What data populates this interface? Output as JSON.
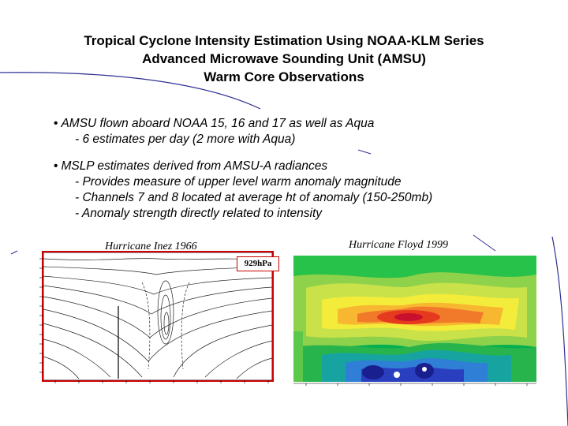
{
  "slide": {
    "title_lines": [
      "Tropical Cyclone Intensity Estimation Using NOAA-KLM Series",
      "Advanced Microwave Sounding Unit (AMSU)",
      "Warm Core Observations"
    ],
    "bullets": [
      {
        "marker": "•",
        "text": "AMSU flown aboard NOAA 15, 16 and 17 as well as Aqua",
        "subs": [
          "- 6 estimates per day (2 more with Aqua)"
        ]
      },
      {
        "marker": "•",
        "text": "MSLP estimates derived from AMSU-A radiances",
        "subs": [
          "- Provides measure of upper level warm anomaly magnitude",
          "- Channels 7 and 8 located at average ht of anomaly (150-250mb)",
          "- Anomaly strength directly related to intensity"
        ]
      }
    ],
    "figures": {
      "left_caption": "Hurricane Inez 1966",
      "right_caption": "Hurricane Floyd 1999",
      "pressure_label": "929hPa"
    },
    "colors": {
      "accent_line": "#2e3192",
      "highlight_border": "#cc0000"
    }
  }
}
